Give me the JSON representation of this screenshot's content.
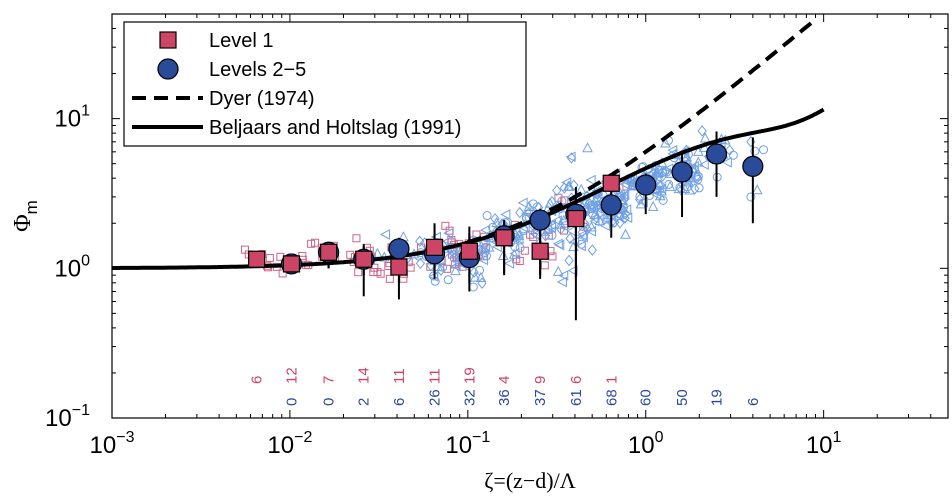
{
  "chart_data": {
    "type": "scatter",
    "title": "",
    "xlabel": "ζ=(z−d)/Λ",
    "ylabel": "Φ",
    "ylabel_sub": "m",
    "x_scale": "log",
    "y_scale": "log",
    "xlim": [
      0.001,
      50
    ],
    "ylim": [
      0.1,
      50
    ],
    "x_ticks": [
      {
        "base": "10",
        "exp": "−3",
        "value": 0.001
      },
      {
        "base": "10",
        "exp": "−2",
        "value": 0.01
      },
      {
        "base": "10",
        "exp": "−1",
        "value": 0.1
      },
      {
        "base": "10",
        "exp": "0",
        "value": 1
      },
      {
        "base": "10",
        "exp": "1",
        "value": 10
      }
    ],
    "y_ticks": [
      {
        "base": "10",
        "exp": "−1",
        "value": 0.1
      },
      {
        "base": "10",
        "exp": "0",
        "value": 1
      },
      {
        "base": "10",
        "exp": "1",
        "value": 10
      }
    ],
    "grid": false,
    "legend_position": "top-left",
    "legend": [
      {
        "label": "Level 1",
        "marker": "square"
      },
      {
        "label": "Levels 2−5",
        "marker": "circle"
      },
      {
        "label": "Dyer (1974)",
        "marker": "dashed-line"
      },
      {
        "label": "Beljaars and Holtslag (1991)",
        "marker": "solid-line"
      }
    ],
    "colors": {
      "level1": "#cc4466",
      "level1_scatter": "#cc6688",
      "levels25": "#2a4a9a",
      "levels25_scatter": "#6fa0e6",
      "lines": "#000000"
    },
    "series": [
      {
        "name": "Level 1",
        "marker": "square",
        "points": [
          {
            "x": 0.0065,
            "y": 1.15,
            "ylo": 1.05,
            "yhi": 1.25,
            "count": "6"
          },
          {
            "x": 0.0102,
            "y": 1.07,
            "ylo": 0.92,
            "yhi": 1.22,
            "count": "12"
          },
          {
            "x": 0.0165,
            "y": 1.28,
            "ylo": 1.0,
            "yhi": 1.5,
            "count": "7"
          },
          {
            "x": 0.026,
            "y": 1.15,
            "ylo": 0.9,
            "yhi": 1.45,
            "count": "14"
          },
          {
            "x": 0.041,
            "y": 1.02,
            "ylo": 0.62,
            "yhi": 1.25,
            "count": "11"
          },
          {
            "x": 0.065,
            "y": 1.38,
            "ylo": 0.95,
            "yhi": 2.0,
            "count": "11"
          },
          {
            "x": 0.102,
            "y": 1.3,
            "ylo": 0.8,
            "yhi": 1.9,
            "count": "19"
          },
          {
            "x": 0.16,
            "y": 1.6,
            "ylo": 0.92,
            "yhi": 2.1,
            "count": "4"
          },
          {
            "x": 0.255,
            "y": 1.3,
            "ylo": 0.85,
            "yhi": 2.1,
            "count": "9"
          },
          {
            "x": 0.405,
            "y": 2.15,
            "ylo": 0.87,
            "yhi": 3.0,
            "count": "6"
          },
          {
            "x": 0.64,
            "y": 3.7,
            "ylo": 2.8,
            "yhi": 4.2,
            "count": "1"
          }
        ]
      },
      {
        "name": "Levels 2−5",
        "marker": "circle",
        "points": [
          {
            "x": 0.0102,
            "y": 1.07,
            "ylo": 0.92,
            "yhi": 1.22,
            "count": "0"
          },
          {
            "x": 0.0165,
            "y": 1.28,
            "ylo": 1.0,
            "yhi": 1.5,
            "count": "0"
          },
          {
            "x": 0.026,
            "y": 1.15,
            "ylo": 0.65,
            "yhi": 1.4,
            "count": "2"
          },
          {
            "x": 0.041,
            "y": 1.35,
            "ylo": 0.8,
            "yhi": 1.6,
            "count": "6"
          },
          {
            "x": 0.065,
            "y": 1.25,
            "ylo": 0.85,
            "yhi": 1.9,
            "count": "26"
          },
          {
            "x": 0.102,
            "y": 1.18,
            "ylo": 0.7,
            "yhi": 1.7,
            "count": "32"
          },
          {
            "x": 0.16,
            "y": 1.65,
            "ylo": 0.9,
            "yhi": 2.0,
            "count": "36"
          },
          {
            "x": 0.255,
            "y": 2.1,
            "ylo": 0.9,
            "yhi": 2.5,
            "count": "37"
          },
          {
            "x": 0.405,
            "y": 2.3,
            "ylo": 0.45,
            "yhi": 3.5,
            "count": "61"
          },
          {
            "x": 0.64,
            "y": 2.65,
            "ylo": 1.6,
            "yhi": 3.8,
            "count": "68"
          },
          {
            "x": 1.0,
            "y": 3.6,
            "ylo": 2.3,
            "yhi": 4.3,
            "count": "60"
          },
          {
            "x": 1.6,
            "y": 4.4,
            "ylo": 2.2,
            "yhi": 5.8,
            "count": "50"
          },
          {
            "x": 2.5,
            "y": 5.8,
            "ylo": 3.0,
            "yhi": 8.2,
            "count": "19"
          },
          {
            "x": 4.0,
            "y": 4.8,
            "ylo": 2.0,
            "yhi": 7.5,
            "count": "6"
          }
        ]
      },
      {
        "name": "Dyer (1974)",
        "style": "dashed",
        "formula": "Phi_m = (1 + 5 zeta)"
      },
      {
        "name": "Beljaars and Holtslag (1991)",
        "style": "solid",
        "formula": "Phi_m = 1 + zeta*(a + b*exp(-d*zeta)*(1 + c - d*zeta)), a=1, b=0.667, c=5, d=0.35"
      }
    ]
  }
}
